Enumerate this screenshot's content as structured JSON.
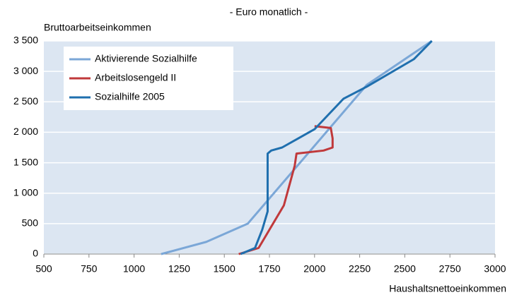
{
  "chart_data": {
    "type": "line",
    "title": "- Euro monatlich -",
    "y_label": "Bruttoarbeitseinkommen",
    "x_label": "Haushaltsnettoeinkommen",
    "xlim": [
      500,
      3000
    ],
    "xticks": [
      500,
      750,
      1000,
      1250,
      1500,
      1750,
      2000,
      2250,
      2500,
      2750,
      3000
    ],
    "ylim": [
      0,
      3500
    ],
    "yticks": [
      0,
      500,
      {
        "value": 1000,
        "label": "1 000"
      },
      {
        "value": 1500,
        "label": "1 500"
      },
      {
        "value": 2000,
        "label": "2 000"
      },
      {
        "value": 2500,
        "label": "2 500"
      },
      {
        "value": 3000,
        "label": "3 000"
      },
      {
        "value": 3500,
        "label": "3 500"
      }
    ],
    "grid": true,
    "legend": "top-left",
    "series": [
      {
        "name": "Aktivierende Sozialhilfe",
        "color": "#7ba7d7",
        "x": [
          1150,
          1400,
          1630,
          2290,
          2650
        ],
        "values": [
          0,
          200,
          500,
          2780,
          3500
        ]
      },
      {
        "name": "Arbeitslosengeld II",
        "color": "#c0393b",
        "x": [
          1580,
          1690,
          1830,
          1890,
          1900,
          2050,
          2100,
          2100,
          2090,
          2000
        ],
        "values": [
          0,
          100,
          800,
          1450,
          1650,
          1700,
          1750,
          1900,
          2070,
          2100
        ]
      },
      {
        "name": "Sozialhilfe 2005",
        "color": "#1f6fae",
        "x": [
          1590,
          1670,
          1710,
          1740,
          1740,
          1760,
          1820,
          1910,
          2000,
          2160,
          2290,
          2550,
          2650
        ],
        "values": [
          0,
          100,
          400,
          700,
          1650,
          1700,
          1750,
          1900,
          2050,
          2550,
          2750,
          3200,
          3500
        ]
      }
    ]
  }
}
